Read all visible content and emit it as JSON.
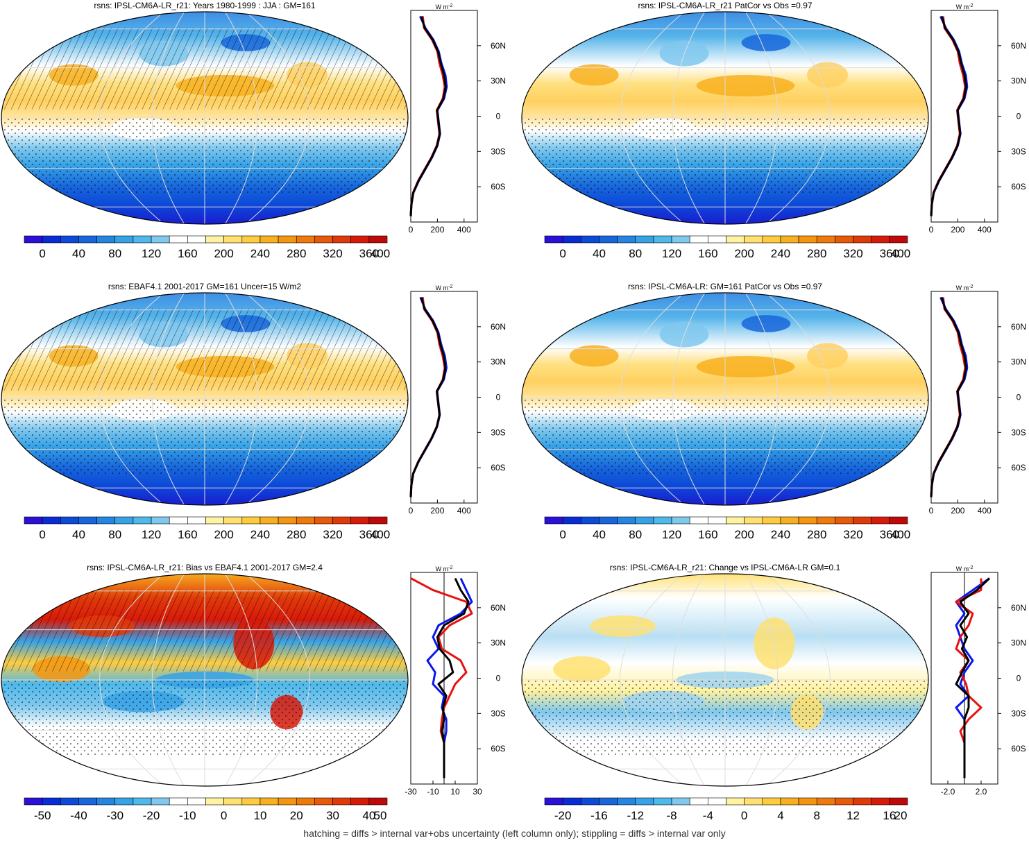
{
  "footer": "hatching = diffs > internal var+obs uncertainty (left column only); stippling = diffs > internal var only",
  "profile_unit": "W m",
  "profile_unit_sup": "-2",
  "lat_ticks": [
    "60N",
    "30N",
    "0",
    "30S",
    "60S"
  ],
  "colors": {
    "model_line": "#0a16ee",
    "obs_line": "#e81010",
    "ensemble_line": "#000000",
    "seq_palette": [
      "#2a10d8",
      "#0a2cd6",
      "#0c4ad8",
      "#1766db",
      "#2585e0",
      "#37a2e6",
      "#4fb9ec",
      "#80c8ee",
      "#ffffff",
      "#ffffff",
      "#fff2a0",
      "#ffe070",
      "#ffcc40",
      "#f8b020",
      "#f49610",
      "#ef7a0c",
      "#e85a0a",
      "#e03a0a",
      "#d81a0a",
      "#c00808"
    ],
    "div_palette": [
      "#2a10d8",
      "#0a2cd6",
      "#0c4ad8",
      "#1766db",
      "#2585e0",
      "#37a2e6",
      "#4fb9ec",
      "#80c8ee",
      "#ffffff",
      "#ffffff",
      "#fff2a0",
      "#ffe070",
      "#ffcc40",
      "#f8b020",
      "#f49610",
      "#ef7a0c",
      "#e85a0a",
      "#e03a0a",
      "#d81a0a",
      "#c00808"
    ]
  },
  "panels": [
    {
      "title": "rsns: IPSL-CM6A-LR_r21: Years 1980-1999 : JJA : GM=161",
      "colorbar_labels": [
        "0",
        "40",
        "80",
        "120",
        "160",
        "200",
        "240",
        "280",
        "320",
        "360",
        "400"
      ],
      "profile_ticks": [
        "0",
        "200",
        "400"
      ]
    },
    {
      "title": "rsns: IPSL-CM6A-LR_r21 PatCor vs Obs =0.97",
      "colorbar_labels": [
        "0",
        "40",
        "80",
        "120",
        "160",
        "200",
        "240",
        "280",
        "320",
        "360",
        "400"
      ],
      "profile_ticks": [
        "0",
        "200",
        "400"
      ]
    },
    {
      "title": "rsns: EBAF4.1 2001-2017 GM=161 Uncer=15 W/m2",
      "colorbar_labels": [
        "0",
        "40",
        "80",
        "120",
        "160",
        "200",
        "240",
        "280",
        "320",
        "360",
        "400"
      ],
      "profile_ticks": [
        "0",
        "200",
        "400"
      ]
    },
    {
      "title": "rsns: IPSL-CM6A-LR: GM=161 PatCor vs Obs =0.97",
      "colorbar_labels": [
        "0",
        "40",
        "80",
        "120",
        "160",
        "200",
        "240",
        "280",
        "320",
        "360",
        "400"
      ],
      "profile_ticks": [
        "0",
        "200",
        "400"
      ]
    },
    {
      "title": "rsns: IPSL-CM6A-LR_r21: Bias vs EBAF4.1 2001-2017 GM=2.4",
      "colorbar_labels": [
        "-50",
        "-40",
        "-30",
        "-20",
        "-10",
        "0",
        "10",
        "20",
        "30",
        "40",
        "50"
      ],
      "profile_ticks": [
        "-30",
        "-10",
        "10",
        "30"
      ]
    },
    {
      "title": "rsns: IPSL-CM6A-LR_r21: Change vs IPSL-CM6A-LR GM=0.1",
      "colorbar_labels": [
        "-20",
        "-16",
        "-12",
        "-8",
        "-4",
        "0",
        "4",
        "8",
        "12",
        "16",
        "20"
      ],
      "profile_ticks": [
        "-2.0",
        "2.0"
      ]
    }
  ],
  "chart_data": [
    {
      "type": "area",
      "title": "rsns: IPSL-CM6A-LR_r21: Years 1980-1999 : JJA : GM=161",
      "color_scale": [
        0,
        400
      ],
      "zonal_profile": {
        "x_range": [
          0,
          500
        ],
        "lat": [
          85,
          75,
          65,
          55,
          45,
          35,
          25,
          15,
          5,
          -5,
          -15,
          -25,
          -35,
          -45,
          -55,
          -65,
          -75,
          -85
        ],
        "series": [
          {
            "values": [
              70,
              110,
              170,
              210,
              230,
              260,
              270,
              250,
              200,
              210,
              220,
              200,
              160,
              110,
              60,
              20,
              5,
              0
            ]
          },
          {
            "values": [
              90,
              100,
              160,
              200,
              215,
              240,
              255,
              240,
              195,
              205,
              215,
              195,
              155,
              105,
              55,
              18,
              4,
              0
            ]
          },
          {
            "values": [
              80,
              105,
              165,
              205,
              225,
              250,
              262,
              245,
              198,
              208,
              218,
              198,
              158,
              108,
              58,
              19,
              5,
              0
            ]
          }
        ]
      }
    },
    {
      "type": "area",
      "title": "rsns: IPSL-CM6A-LR_r21 PatCor vs Obs =0.97",
      "color_scale": [
        0,
        400
      ],
      "zonal_profile": {
        "x_range": [
          0,
          500
        ],
        "lat": [
          85,
          75,
          65,
          55,
          45,
          35,
          25,
          15,
          5,
          -5,
          -15,
          -25,
          -35,
          -45,
          -55,
          -65,
          -75,
          -85
        ],
        "series": [
          {
            "values": [
              70,
              110,
              170,
              210,
              230,
              260,
              270,
              250,
              200,
              210,
              220,
              200,
              160,
              110,
              60,
              20,
              5,
              0
            ]
          },
          {
            "values": [
              90,
              100,
              160,
              200,
              215,
              240,
              255,
              240,
              195,
              205,
              215,
              195,
              155,
              105,
              55,
              18,
              4,
              0
            ]
          },
          {
            "values": [
              80,
              105,
              165,
              205,
              225,
              250,
              262,
              245,
              198,
              208,
              218,
              198,
              158,
              108,
              58,
              19,
              5,
              0
            ]
          }
        ]
      }
    },
    {
      "type": "area",
      "title": "rsns: EBAF4.1 2001-2017 GM=161 Uncer=15 W/m2",
      "color_scale": [
        0,
        400
      ],
      "zonal_profile": {
        "x_range": [
          0,
          500
        ],
        "lat": [
          85,
          75,
          65,
          55,
          45,
          35,
          25,
          15,
          5,
          -5,
          -15,
          -25,
          -35,
          -45,
          -55,
          -65,
          -75,
          -85
        ],
        "series": [
          {
            "values": [
              72,
              108,
              168,
              208,
              228,
              256,
              268,
              248,
              198,
              208,
              218,
              198,
              158,
              108,
              58,
              19,
              5,
              0
            ]
          },
          {
            "values": [
              90,
              100,
              160,
              200,
              215,
              240,
              255,
              240,
              195,
              205,
              215,
              195,
              155,
              105,
              55,
              18,
              4,
              0
            ]
          },
          {
            "values": [
              80,
              104,
              164,
              204,
              222,
              248,
              260,
              244,
              196,
              206,
              216,
              196,
              156,
              106,
              56,
              18,
              4,
              0
            ]
          }
        ]
      }
    },
    {
      "type": "area",
      "title": "rsns: IPSL-CM6A-LR: GM=161 PatCor vs Obs =0.97",
      "color_scale": [
        0,
        400
      ],
      "zonal_profile": {
        "x_range": [
          0,
          500
        ],
        "lat": [
          85,
          75,
          65,
          55,
          45,
          35,
          25,
          15,
          5,
          -5,
          -15,
          -25,
          -35,
          -45,
          -55,
          -65,
          -75,
          -85
        ],
        "series": [
          {
            "values": [
              70,
              110,
              170,
              210,
              230,
              260,
              270,
              250,
              200,
              210,
              220,
              200,
              160,
              110,
              60,
              20,
              5,
              0
            ]
          },
          {
            "values": [
              90,
              100,
              160,
              200,
              215,
              240,
              255,
              240,
              195,
              205,
              215,
              195,
              155,
              105,
              55,
              18,
              4,
              0
            ]
          },
          {
            "values": [
              80,
              105,
              165,
              205,
              225,
              250,
              262,
              245,
              198,
              208,
              218,
              198,
              158,
              108,
              58,
              19,
              5,
              0
            ]
          }
        ]
      }
    },
    {
      "type": "area",
      "title": "rsns: IPSL-CM6A-LR_r21: Bias vs EBAF4.1 2001-2017 GM=2.4",
      "color_scale": [
        -55,
        55
      ],
      "zonal_profile": {
        "x_range": [
          -30,
          30
        ],
        "lat": [
          85,
          75,
          65,
          55,
          45,
          35,
          25,
          15,
          5,
          -5,
          -15,
          -25,
          -35,
          -45,
          -55,
          -65,
          -75,
          -85
        ],
        "series": [
          {
            "values": [
              15,
              20,
              25,
              15,
              -5,
              -10,
              -5,
              -15,
              -8,
              -10,
              0,
              -2,
              2,
              2,
              0,
              0,
              0,
              0
            ]
          },
          {
            "values": [
              -30,
              -10,
              20,
              25,
              5,
              -5,
              -2,
              15,
              20,
              10,
              5,
              0,
              -2,
              -3,
              0,
              0,
              0,
              0
            ]
          },
          {
            "values": [
              10,
              15,
              22,
              18,
              0,
              -6,
              -4,
              5,
              8,
              -5,
              2,
              -1,
              0,
              -2,
              0,
              0,
              0,
              0
            ]
          }
        ]
      }
    },
    {
      "type": "area",
      "title": "rsns: IPSL-CM6A-LR_r21: Change vs IPSL-CM6A-LR GM=0.1",
      "color_scale": [
        -22,
        22
      ],
      "zonal_profile": {
        "x_range": [
          -4,
          4
        ],
        "lat": [
          85,
          75,
          65,
          55,
          45,
          35,
          25,
          15,
          5,
          -5,
          -15,
          -25,
          -35,
          -45,
          -55,
          -65,
          -75,
          -85
        ],
        "series": [
          {
            "values": [
              3,
              1,
              -1,
              0,
              -1,
              -0.5,
              0,
              1,
              0,
              -0.5,
              0.5,
              -1,
              0,
              0,
              0,
              0,
              0,
              0
            ]
          },
          {
            "values": [
              2,
              2,
              -1,
              1,
              0.5,
              -0.5,
              -1,
              0.5,
              -0.5,
              0.2,
              0.5,
              2,
              0.5,
              -0.5,
              0,
              0,
              0,
              0
            ]
          },
          {
            "values": [
              3,
              1.5,
              -0.5,
              0.5,
              -0.5,
              0.3,
              -0.3,
              0.5,
              -0.3,
              -1,
              0.5,
              0.5,
              0,
              0,
              0,
              0,
              0,
              0
            ]
          }
        ]
      }
    }
  ]
}
